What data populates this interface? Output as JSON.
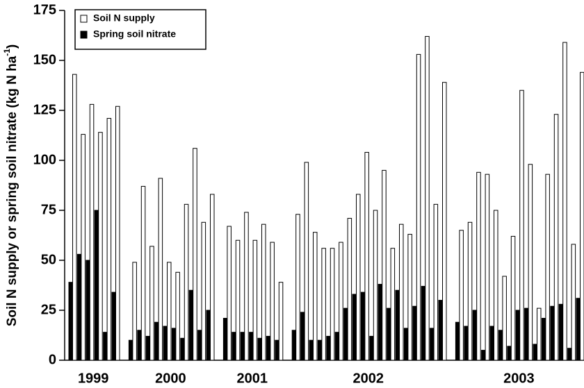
{
  "chart_data": {
    "type": "bar",
    "ylabel": {
      "text": "Soil N supply or spring soil nitrate (kg N ha",
      "sup": "-1",
      "end": ")"
    },
    "ylim": [
      0,
      175
    ],
    "yticks": [
      0,
      25,
      50,
      75,
      100,
      125,
      150,
      175
    ],
    "series": [
      {
        "name": "Soil N supply",
        "color": "#ffffff"
      },
      {
        "name": "Spring soil nitrate",
        "color": "#000000"
      }
    ],
    "groups": [
      {
        "label": "1999",
        "values": [
          [
            143,
            113,
            128,
            114,
            121,
            127
          ],
          [
            39,
            53,
            50,
            75,
            14,
            34
          ]
        ]
      },
      {
        "label": "2000",
        "values": [
          [
            49,
            87,
            57,
            91,
            49,
            44,
            78,
            106,
            69,
            83
          ],
          [
            10,
            15,
            12,
            19,
            17,
            16,
            11,
            35,
            15,
            25
          ]
        ]
      },
      {
        "label": "2001",
        "values": [
          [
            67,
            60,
            74,
            60,
            68,
            59,
            39
          ],
          [
            21,
            14,
            14,
            14,
            11,
            12,
            10
          ]
        ]
      },
      {
        "label": "2002",
        "values": [
          [
            73,
            99,
            64,
            56,
            56,
            59,
            71,
            83,
            104,
            75,
            95,
            56,
            68,
            63,
            153,
            162,
            78,
            139
          ],
          [
            15,
            24,
            10,
            10,
            12,
            14,
            26,
            33,
            34,
            12,
            38,
            26,
            35,
            16,
            27,
            37,
            16,
            30
          ]
        ]
      },
      {
        "label": "2003",
        "values": [
          [
            65,
            69,
            94,
            93,
            75,
            42,
            62,
            135,
            98,
            26,
            93,
            123,
            159,
            58,
            144
          ],
          [
            19,
            17,
            25,
            5,
            17,
            15,
            7,
            25,
            26,
            8,
            21,
            27,
            28,
            6,
            31
          ]
        ]
      }
    ]
  }
}
